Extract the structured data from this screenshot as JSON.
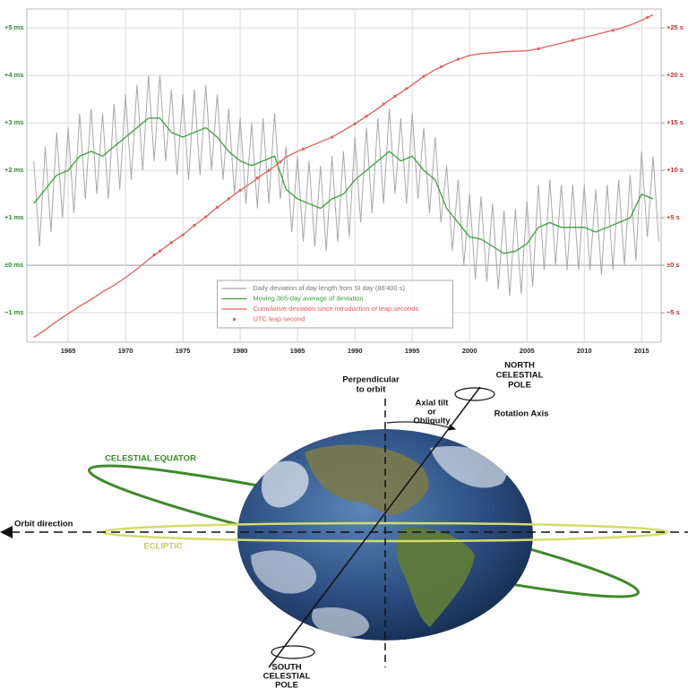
{
  "chart_data": {
    "type": "line",
    "xlim": [
      1961.4,
      2016.7
    ],
    "xticks": [
      1965,
      1970,
      1975,
      1980,
      1985,
      1990,
      1995,
      2000,
      2005,
      2010,
      2015
    ],
    "ylim": [
      -1.62,
      5.4
    ],
    "yticks": [
      {
        "value": -1,
        "label": "−1 ms"
      },
      {
        "value": 0,
        "label": "±0 ms"
      },
      {
        "value": 1,
        "label": "+1 ms"
      },
      {
        "value": 2,
        "label": "+2 ms"
      },
      {
        "value": 3,
        "label": "+3 ms"
      },
      {
        "value": 4,
        "label": "+4 ms"
      },
      {
        "value": 5,
        "label": "+5 ms"
      }
    ],
    "y2lim": [
      -8.1,
      27
    ],
    "y2ticks": [
      {
        "value": -5,
        "label": "−5 s"
      },
      {
        "value": 0,
        "label": "±0 s"
      },
      {
        "value": 5,
        "label": "+5 s"
      },
      {
        "value": 10,
        "label": "+10 s"
      },
      {
        "value": 15,
        "label": "+15 s"
      },
      {
        "value": 20,
        "label": "+20 s"
      },
      {
        "value": 25,
        "label": "+25 s"
      }
    ],
    "y_tick_color": "#2a8a2a",
    "y2_tick_color": "#c03030",
    "grid": true,
    "legend": "lower center",
    "x": [
      1962,
      1963,
      1964,
      1965,
      1966,
      1967,
      1968,
      1969,
      1970,
      1971,
      1972,
      1973,
      1974,
      1975,
      1976,
      1977,
      1978,
      1979,
      1980,
      1981,
      1982,
      1983,
      1984,
      1985,
      1986,
      1987,
      1988,
      1989,
      1990,
      1991,
      1992,
      1993,
      1994,
      1995,
      1996,
      1997,
      1998,
      1999,
      2000,
      2001,
      2002,
      2003,
      2004,
      2005,
      2006,
      2007,
      2008,
      2009,
      2010,
      2011,
      2012,
      2013,
      2014,
      2015,
      2016
    ],
    "series": [
      {
        "name": "Daily deviation of day length from SI day (86'400 s)",
        "color": "#a8a8a8",
        "x": [
          1962,
          1962.5,
          1963,
          1963.5,
          1964,
          1964.5,
          1965,
          1965.5,
          1966,
          1966.5,
          1967,
          1967.5,
          1968,
          1968.5,
          1969,
          1969.5,
          1970,
          1970.5,
          1971,
          1971.5,
          1972,
          1972.5,
          1973,
          1973.5,
          1974,
          1974.5,
          1975,
          1975.5,
          1976,
          1976.5,
          1977,
          1977.5,
          1978,
          1978.5,
          1979,
          1979.5,
          1980,
          1980.5,
          1981,
          1981.5,
          1982,
          1982.5,
          1983,
          1983.5,
          1984,
          1984.5,
          1985,
          1985.5,
          1986,
          1986.5,
          1987,
          1987.5,
          1988,
          1988.5,
          1989,
          1989.5,
          1990,
          1990.5,
          1991,
          1991.5,
          1992,
          1992.5,
          1993,
          1993.5,
          1994,
          1994.5,
          1995,
          1995.5,
          1996,
          1996.5,
          1997,
          1997.5,
          1998,
          1998.5,
          1999,
          1999.5,
          2000,
          2000.5,
          2001,
          2001.5,
          2002,
          2002.5,
          2003,
          2003.5,
          2004,
          2004.5,
          2005,
          2005.5,
          2006,
          2006.5,
          2007,
          2007.5,
          2008,
          2008.5,
          2009,
          2009.5,
          2010,
          2010.5,
          2011,
          2011.5,
          2012,
          2012.5,
          2013,
          2013.5,
          2014,
          2014.5,
          2015,
          2015.5,
          2016,
          2016.5
        ],
        "values": [
          2.2,
          0.4,
          2.5,
          0.7,
          2.8,
          1.0,
          2.9,
          1.1,
          3.2,
          1.4,
          3.3,
          1.5,
          3.2,
          1.4,
          3.4,
          1.6,
          3.6,
          1.8,
          3.8,
          2.0,
          4.0,
          2.2,
          4.0,
          2.2,
          3.7,
          1.9,
          3.6,
          1.8,
          3.7,
          1.9,
          3.8,
          2.0,
          3.6,
          1.8,
          3.3,
          1.5,
          3.1,
          1.3,
          3.0,
          1.2,
          3.1,
          1.3,
          3.2,
          1.4,
          2.5,
          0.7,
          2.3,
          0.5,
          2.2,
          0.4,
          2.1,
          0.3,
          2.3,
          0.5,
          2.4,
          0.6,
          2.7,
          0.9,
          2.9,
          1.1,
          3.1,
          1.3,
          3.3,
          1.5,
          3.1,
          1.3,
          3.2,
          1.4,
          2.9,
          1.1,
          2.7,
          0.9,
          2.1,
          0.3,
          1.8,
          0.0,
          1.5,
          -0.3,
          1.45,
          -0.35,
          1.3,
          -0.5,
          1.15,
          -0.65,
          1.2,
          -0.6,
          1.35,
          -0.45,
          1.7,
          -0.1,
          1.8,
          0.0,
          1.7,
          -0.1,
          1.7,
          -0.1,
          1.7,
          -0.1,
          1.6,
          -0.2,
          1.7,
          -0.1,
          1.8,
          0.0,
          1.9,
          0.1,
          2.4,
          0.6,
          2.3,
          0.5
        ]
      },
      {
        "name": "Moving 365-day average of deviation",
        "color": "#3aa03a",
        "values": [
          1.3,
          1.6,
          1.9,
          2.0,
          2.3,
          2.4,
          2.3,
          2.5,
          2.7,
          2.9,
          3.1,
          3.1,
          2.8,
          2.7,
          2.8,
          2.9,
          2.7,
          2.4,
          2.2,
          2.1,
          2.2,
          2.3,
          1.6,
          1.4,
          1.3,
          1.2,
          1.4,
          1.5,
          1.8,
          2.0,
          2.2,
          2.4,
          2.2,
          2.3,
          2.0,
          1.8,
          1.2,
          0.9,
          0.6,
          0.55,
          0.4,
          0.25,
          0.3,
          0.45,
          0.8,
          0.9,
          0.8,
          0.8,
          0.8,
          0.7,
          0.8,
          0.9,
          1.0,
          1.5,
          1.4
        ]
      },
      {
        "name": "Cumulative deviation since introduction of leap seconds",
        "color": "#e06060",
        "axis": "y2",
        "values": [
          -7.6,
          -6.8,
          -5.9,
          -5.1,
          -4.3,
          -3.6,
          -2.8,
          -2.1,
          -1.3,
          -0.4,
          0.6,
          1.5,
          2.4,
          3.2,
          4.2,
          5.1,
          6.1,
          7.0,
          7.9,
          8.7,
          9.6,
          10.4,
          11.4,
          12.0,
          12.5,
          13.0,
          13.5,
          14.2,
          14.9,
          15.7,
          16.5,
          17.4,
          18.2,
          19.0,
          19.9,
          20.6,
          21.2,
          21.7,
          22.1,
          22.3,
          22.4,
          22.5,
          22.55,
          22.6,
          22.8,
          23.1,
          23.4,
          23.7,
          24.0,
          24.3,
          24.6,
          24.9,
          25.3,
          25.8,
          26.4
        ]
      },
      {
        "name": "UTC leap second",
        "color": "#e06060",
        "axis": "y2",
        "mode": "markers",
        "x": [
          1972.5,
          1973,
          1974,
          1975,
          1976,
          1977,
          1978,
          1979,
          1980,
          1981.5,
          1982.5,
          1983.5,
          1985.5,
          1988,
          1990,
          1991,
          1992.5,
          1993.5,
          1994.5,
          1996,
          1997.5,
          1999,
          2006,
          2009,
          2012.5,
          2015.5
        ],
        "values": [
          1.1,
          1.5,
          2.4,
          3.2,
          4.2,
          5.1,
          6.1,
          7.0,
          7.9,
          9.2,
          10.0,
          10.9,
          12.25,
          13.5,
          14.9,
          15.7,
          17.0,
          17.8,
          18.6,
          19.9,
          20.9,
          21.7,
          22.8,
          23.7,
          24.75,
          26.1
        ]
      }
    ]
  },
  "diagram": {
    "north_pole": [
      "NORTH",
      "CELESTIAL",
      "POLE"
    ],
    "perpendicular": [
      "Perpendicular",
      "to orbit"
    ],
    "axial_tilt": [
      "Axial tilt",
      "or",
      "Obliquity"
    ],
    "rotation_axis": "Rotation Axis",
    "celestial_equator": "CELESTIAL EQUATOR",
    "orbit_direction": "Orbit direction",
    "ecliptic": "ECLIPTIC",
    "south_pole": [
      "SOUTH",
      "CELESTIAL",
      "POLE"
    ]
  }
}
